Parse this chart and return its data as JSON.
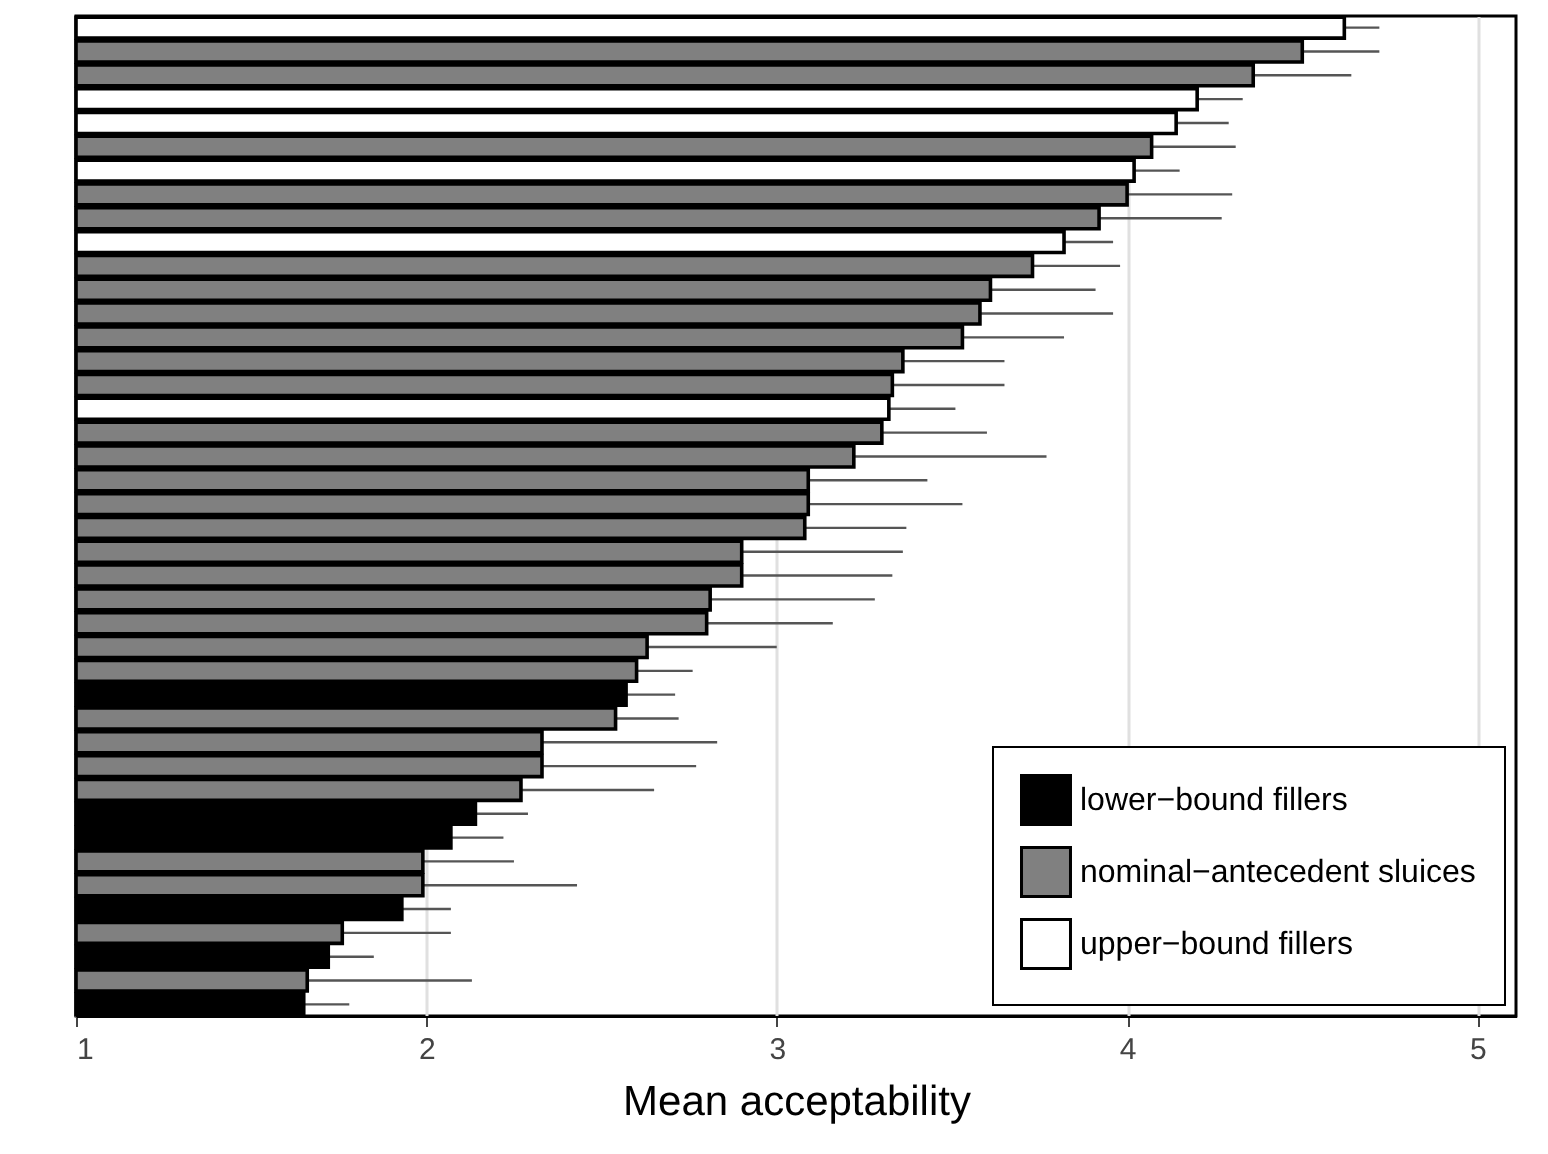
{
  "chart_data": {
    "type": "bar",
    "orientation": "horizontal",
    "xlabel": "Mean acceptability",
    "categories": [
      null,
      null,
      null,
      null,
      null,
      null,
      null,
      null,
      null,
      null,
      null,
      null,
      null,
      null,
      null,
      null,
      null,
      null,
      null,
      null,
      null,
      null,
      null,
      null,
      null,
      null,
      null,
      null,
      null,
      null,
      null,
      null,
      null,
      null,
      null,
      null,
      null,
      null,
      null,
      null,
      null,
      null
    ],
    "series": [
      {
        "name": "lower−bound fillers",
        "color": "#000000",
        "values": [
          null,
          null,
          null,
          null,
          null,
          null,
          null,
          null,
          null,
          null,
          null,
          null,
          null,
          null,
          null,
          null,
          null,
          null,
          null,
          null,
          null,
          null,
          null,
          null,
          null,
          null,
          null,
          null,
          2.57,
          null,
          null,
          null,
          null,
          2.14,
          2.07,
          null,
          null,
          1.93,
          null,
          1.72,
          null,
          1.65
        ],
        "errors": [
          null,
          null,
          null,
          null,
          null,
          null,
          null,
          null,
          null,
          null,
          null,
          null,
          null,
          null,
          null,
          null,
          null,
          null,
          null,
          null,
          null,
          null,
          null,
          null,
          null,
          null,
          null,
          null,
          0.14,
          null,
          null,
          null,
          null,
          0.15,
          0.15,
          null,
          null,
          0.14,
          null,
          0.13,
          null,
          0.13
        ]
      },
      {
        "name": "nominal−antecedent sluices",
        "color": "#808080",
        "values": [
          null,
          4.5,
          4.36,
          null,
          null,
          4.07,
          null,
          4.0,
          3.92,
          null,
          3.73,
          3.61,
          3.58,
          3.53,
          3.36,
          3.33,
          null,
          3.3,
          3.22,
          3.09,
          3.09,
          3.08,
          2.9,
          2.9,
          2.81,
          2.8,
          2.63,
          2.6,
          null,
          2.54,
          2.33,
          2.33,
          2.27,
          null,
          null,
          1.99,
          1.99,
          null,
          1.76,
          null,
          1.66,
          null
        ],
        "errors": [
          null,
          0.22,
          0.28,
          null,
          null,
          0.24,
          null,
          0.3,
          0.35,
          null,
          0.25,
          0.3,
          0.38,
          0.29,
          0.29,
          0.32,
          null,
          0.3,
          0.55,
          0.34,
          0.44,
          0.29,
          0.46,
          0.43,
          0.47,
          0.36,
          0.37,
          0.16,
          null,
          0.18,
          0.5,
          0.44,
          0.38,
          null,
          null,
          0.26,
          0.44,
          null,
          0.31,
          null,
          0.47,
          null
        ]
      },
      {
        "name": "upper−bound fillers",
        "color": "#ffffff",
        "values": [
          4.62,
          null,
          null,
          4.2,
          4.14,
          null,
          4.02,
          null,
          null,
          3.82,
          null,
          null,
          null,
          null,
          null,
          null,
          3.32,
          null,
          null,
          null,
          null,
          null,
          null,
          null,
          null,
          null,
          null,
          null,
          null,
          null,
          null,
          null,
          null,
          null,
          null,
          null,
          null,
          null,
          null,
          null,
          null,
          null
        ],
        "errors": [
          0.1,
          null,
          null,
          0.13,
          0.15,
          null,
          0.13,
          null,
          null,
          0.14,
          null,
          null,
          null,
          null,
          null,
          null,
          0.19,
          null,
          null,
          null,
          null,
          null,
          null,
          null,
          null,
          null,
          null,
          null,
          null,
          null,
          null,
          null,
          null,
          null,
          null,
          null,
          null,
          null,
          null,
          null,
          null,
          null
        ]
      }
    ],
    "xlim": [
      1,
      5.11
    ],
    "xticks": [
      1,
      2,
      3,
      4,
      5
    ],
    "grid": "x",
    "legend": "bottom right"
  }
}
